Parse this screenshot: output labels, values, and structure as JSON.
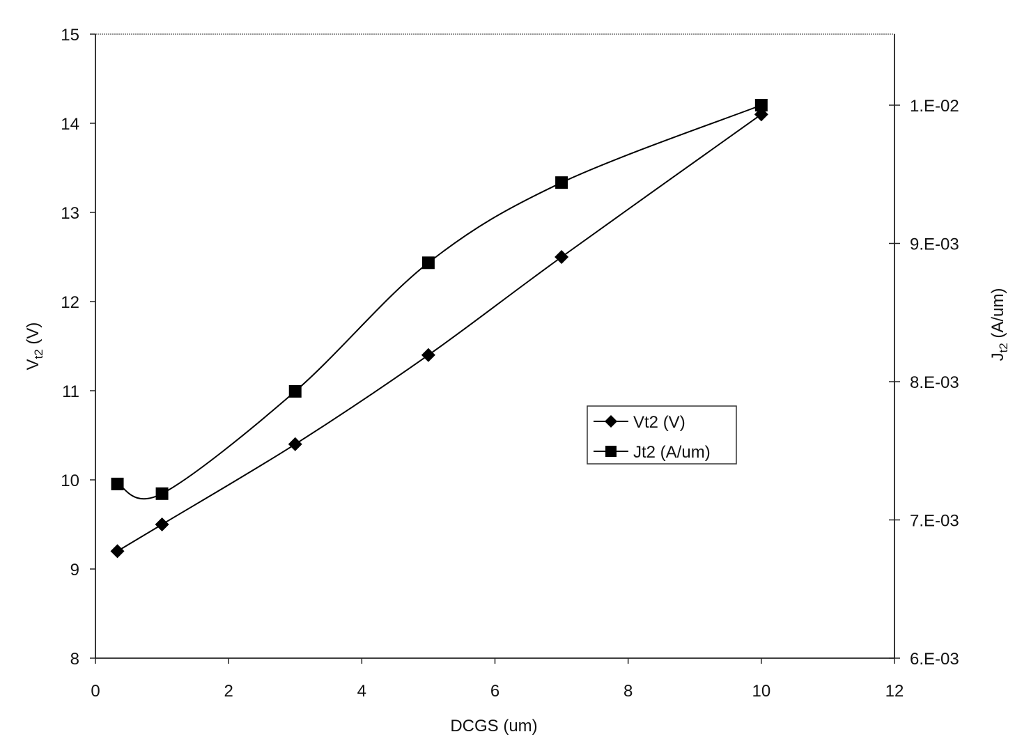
{
  "chart_data": {
    "type": "line",
    "title": "",
    "xlabel": "DCGS (um)",
    "ylabel": "Vt2 (V)",
    "ylabel_main": "V",
    "ylabel_sub": "t2",
    "ylabel_unit": " (V)",
    "y2label": "Jt2 (A/um)",
    "y2label_main": "J",
    "y2label_sub": "t2",
    "y2label_unit": " (A/um)",
    "xlim": [
      0,
      12
    ],
    "ylim": [
      8,
      15
    ],
    "y2lim": [
      0.006,
      0.0105
    ],
    "x_ticks": [
      "0",
      "2",
      "4",
      "6",
      "8",
      "10",
      "12"
    ],
    "y_ticks": [
      "8",
      "9",
      "10",
      "11",
      "12",
      "13",
      "14",
      "15"
    ],
    "y2_ticks": [
      "6.E-03",
      "7.E-03",
      "8.E-03",
      "9.E-03",
      "1.E-02"
    ],
    "grid": false,
    "legend_position": "inside-right-middle",
    "x": [
      0.33,
      1,
      3,
      5,
      7,
      10
    ],
    "series": [
      {
        "name": "Vt2 (V)",
        "axis": "left",
        "marker": "diamond",
        "values": [
          9.2,
          9.5,
          10.4,
          11.4,
          12.5,
          14.1
        ]
      },
      {
        "name": "Jt2 (A/um)",
        "axis": "right",
        "marker": "square",
        "values": [
          0.00726,
          0.00719,
          0.00793,
          0.00886,
          0.00944,
          0.01
        ]
      }
    ]
  }
}
